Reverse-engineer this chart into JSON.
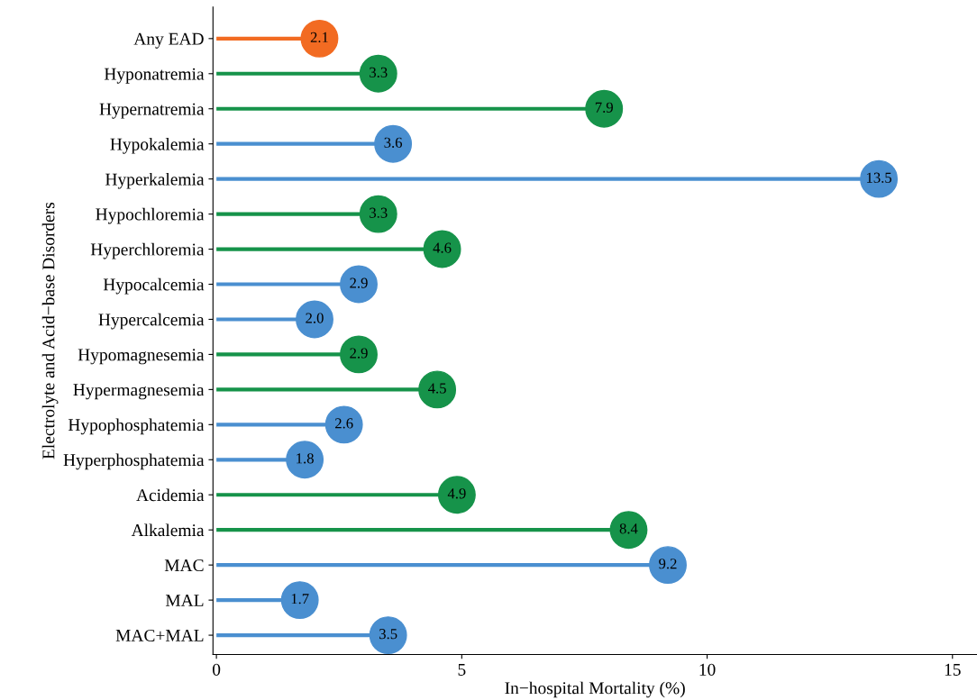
{
  "chart_data": {
    "type": "lollipop",
    "orientation": "horizontal",
    "xlabel": "In−hospital Mortality (%)",
    "ylabel": "Electrolyte and Acid−base Disorders",
    "categories": [
      "Any EAD",
      "Hyponatremia",
      "Hypernatremia",
      "Hypokalemia",
      "Hyperkalemia",
      "Hypochloremia",
      "Hyperchloremia",
      "Hypocalcemia",
      "Hypercalcemia",
      "Hypomagnesemia",
      "Hypermagnesemia",
      "Hypophosphatemia",
      "Hyperphosphatemia",
      "Acidemia",
      "Alkalemia",
      "MAC",
      "MAL",
      "MAC+MAL"
    ],
    "values": [
      2.1,
      3.3,
      7.9,
      3.6,
      13.5,
      3.3,
      4.6,
      2.9,
      2.0,
      2.9,
      4.5,
      2.6,
      1.8,
      4.9,
      8.4,
      9.2,
      1.7,
      3.5
    ],
    "value_labels": [
      "2.1",
      "3.3",
      "7.9",
      "3.6",
      "13.5",
      "3.3",
      "4.6",
      "2.9",
      "2.0",
      "2.9",
      "4.5",
      "2.6",
      "1.8",
      "4.9",
      "8.4",
      "9.2",
      "1.7",
      "3.5"
    ],
    "colors": [
      "#f26b22",
      "#16934a",
      "#16934a",
      "#4a8fd0",
      "#4a8fd0",
      "#16934a",
      "#16934a",
      "#4a8fd0",
      "#4a8fd0",
      "#16934a",
      "#16934a",
      "#4a8fd0",
      "#4a8fd0",
      "#16934a",
      "#16934a",
      "#4a8fd0",
      "#4a8fd0",
      "#4a8fd0"
    ],
    "xlim": [
      -0.07,
      15.5
    ],
    "xticks": [
      0,
      5,
      10,
      15
    ],
    "marker": "circle",
    "grid": false
  }
}
